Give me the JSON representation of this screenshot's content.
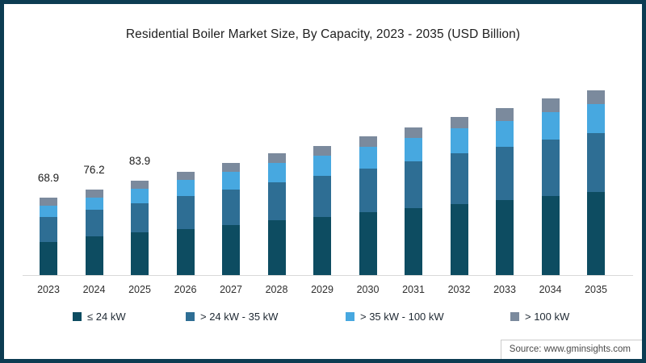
{
  "title": "Residential Boiler Market Size, By Capacity, 2023 - 2035 (USD Billion)",
  "source": "Source: www.gminsights.com",
  "frame_color": "#0c3c52",
  "axis_color": "#d9d9d9",
  "chart_data": {
    "type": "bar",
    "stacked": true,
    "grid": false,
    "y_axis_visible": false,
    "legend_position": "bottom",
    "title": "Residential Boiler Market Size, By Capacity, 2023 - 2035 (USD Billion)",
    "categories": [
      "2023",
      "2024",
      "2025",
      "2026",
      "2027",
      "2028",
      "2029",
      "2030",
      "2031",
      "2032",
      "2033",
      "2034",
      "2035"
    ],
    "series": [
      {
        "name": "≤ 24 kW",
        "color": "#0d4c61",
        "values": [
          29.8,
          34.7,
          38.1,
          41.4,
          45.0,
          48.7,
          51.9,
          56.0,
          59.4,
          63.5,
          67.0,
          70.7,
          74.3
        ]
      },
      {
        "name": "> 24 kW - 35 kW",
        "color": "#2e6e94",
        "values": [
          22.0,
          23.3,
          25.9,
          29.0,
          31.5,
          34.1,
          36.4,
          39.0,
          41.9,
          44.8,
          47.2,
          49.9,
          52.4
        ]
      },
      {
        "name": "> 35 kW - 100 kW",
        "color": "#47a8e0",
        "values": [
          10.4,
          11.2,
          13.1,
          14.3,
          15.6,
          16.9,
          17.9,
          19.5,
          20.8,
          22.3,
          23.5,
          24.8,
          26.0
        ]
      },
      {
        "name": "> 100 kW",
        "color": "#7b8a9d",
        "values": [
          6.7,
          7.0,
          6.8,
          7.3,
          8.0,
          8.6,
          9.2,
          9.4,
          9.9,
          10.6,
          11.1,
          11.8,
          12.4
        ]
      }
    ],
    "totals": [
      68.9,
      76.2,
      83.9,
      92.0,
      100.1,
      108.3,
      115.4,
      123.9,
      132.0,
      141.2,
      148.8,
      157.2,
      165.1
    ],
    "data_labels": [
      "68.9",
      "76.2",
      "83.9",
      "",
      "",
      "",
      "",
      "",
      "",
      "",
      "",
      "",
      ""
    ]
  }
}
